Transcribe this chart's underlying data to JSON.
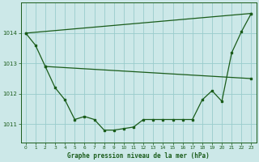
{
  "title": "Graphe pression niveau de la mer (hPa)",
  "bg_color": "#cce8e8",
  "line_color": "#1a5c1a",
  "grid_color": "#99cccc",
  "ylim": [
    1010.4,
    1015.0
  ],
  "xlim": [
    -0.5,
    23.5
  ],
  "yticks": [
    1011,
    1012,
    1013,
    1014
  ],
  "xticks": [
    0,
    1,
    2,
    3,
    4,
    5,
    6,
    7,
    8,
    9,
    10,
    11,
    12,
    13,
    14,
    15,
    16,
    17,
    18,
    19,
    20,
    21,
    22,
    23
  ],
  "series1": {
    "x": [
      0,
      1,
      2,
      3,
      4,
      5,
      6,
      7,
      8,
      9,
      10,
      11,
      12,
      13,
      14,
      15,
      16,
      17,
      18,
      19,
      20,
      21,
      22,
      23
    ],
    "y": [
      1014.0,
      1013.6,
      1012.9,
      1012.2,
      1011.8,
      1011.15,
      1011.25,
      1011.15,
      1010.8,
      1010.8,
      1010.85,
      1010.9,
      1011.15,
      1011.15,
      1011.15,
      1011.15,
      1011.15,
      1011.15,
      1011.8,
      1012.1,
      1011.75,
      1013.35,
      1014.05,
      1014.65
    ]
  },
  "series2": {
    "x": [
      0,
      23
    ],
    "y": [
      1014.0,
      1014.65
    ]
  },
  "series3": {
    "x": [
      2,
      23
    ],
    "y": [
      1012.9,
      1012.5
    ]
  }
}
